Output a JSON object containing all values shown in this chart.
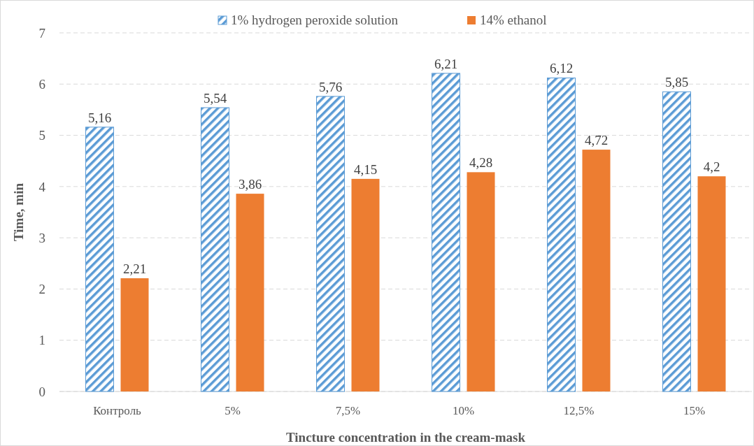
{
  "chart_data": {
    "type": "bar",
    "xlabel": "Tincture concentration in the cream-mask",
    "ylabel": "Time, min",
    "categories": [
      "Контроль",
      "5%",
      "7,5%",
      "10%",
      "12,5%",
      "15%"
    ],
    "series": [
      {
        "name": "1% hydrogen peroxide solution",
        "color": "#5b9bd5",
        "values": [
          5.16,
          5.54,
          5.76,
          6.21,
          6.12,
          5.85
        ],
        "value_labels": [
          "5,16",
          "5,54",
          "5,76",
          "6,21",
          "6,12",
          "5,85"
        ]
      },
      {
        "name": "14% ethanol",
        "color": "#ed7d31",
        "values": [
          2.21,
          3.86,
          4.15,
          4.28,
          4.72,
          4.2
        ],
        "value_labels": [
          "2,21",
          "3,86",
          "4,15",
          "4,28",
          "4,72",
          "4,2"
        ]
      }
    ],
    "ylim": [
      0,
      7
    ],
    "yticks": [
      0,
      1,
      2,
      3,
      4,
      5,
      6,
      7
    ],
    "grid": "y",
    "legend": "top"
  }
}
